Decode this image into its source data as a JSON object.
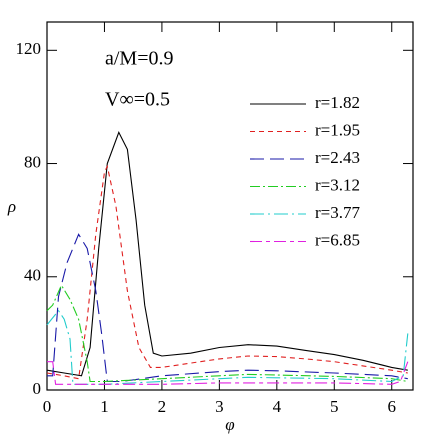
{
  "chart_data": {
    "type": "line",
    "annotations": [
      "a/M=0.9",
      "V∞=0.5"
    ],
    "x_label": "φ",
    "y_label": "ρ",
    "xlim": [
      0,
      6.37
    ],
    "ylim": [
      0,
      130
    ],
    "xticks": [
      0,
      1,
      2,
      3,
      4,
      5,
      6
    ],
    "yticks": [
      0,
      40,
      80,
      120
    ],
    "series": [
      {
        "name": "r=1.82",
        "color": "#000000",
        "dash": "",
        "x": [
          0,
          0.3,
          0.6,
          0.75,
          0.9,
          1.05,
          1.25,
          1.4,
          1.55,
          1.7,
          1.85,
          2.0,
          2.5,
          3.0,
          3.5,
          4.0,
          4.5,
          5.0,
          5.5,
          6.0,
          6.28
        ],
        "values": [
          7,
          6,
          5,
          15,
          50,
          80,
          91,
          85,
          60,
          30,
          13,
          12,
          13,
          15,
          16,
          15.5,
          14,
          12.5,
          10.5,
          8,
          7
        ]
      },
      {
        "name": "r=1.95",
        "color": "#e02020",
        "dash": "5,4",
        "x": [
          0,
          0.3,
          0.55,
          0.7,
          0.85,
          1.0,
          1.05,
          1.2,
          1.4,
          1.6,
          1.8,
          2.0,
          2.5,
          3.0,
          3.5,
          4.0,
          4.5,
          5.0,
          5.5,
          6.0,
          6.28
        ],
        "values": [
          6,
          5,
          4,
          25,
          55,
          77,
          79,
          65,
          35,
          15,
          8,
          8,
          9.5,
          11,
          12,
          11.8,
          11,
          10,
          8.5,
          7,
          6
        ]
      },
      {
        "name": "r=2.43",
        "color": "#1a1aa8",
        "dash": "14,6",
        "x": [
          0,
          0.1,
          0.2,
          0.35,
          0.55,
          0.7,
          0.85,
          0.95,
          1.05,
          1.3,
          2,
          3,
          3.5,
          4,
          5,
          6,
          6.28
        ],
        "values": [
          5,
          5,
          33,
          45,
          55,
          50,
          35,
          20,
          3,
          3,
          5,
          6.5,
          7,
          6.8,
          6,
          5,
          4
        ]
      },
      {
        "name": "r=3.12",
        "color": "#22cc22",
        "dash": "10,3,2,3",
        "x": [
          0,
          0.1,
          0.25,
          0.4,
          0.55,
          0.7,
          0.75,
          1,
          2,
          3,
          3.5,
          4,
          5,
          6,
          6.28
        ],
        "values": [
          28,
          30,
          37,
          32,
          25,
          10,
          3,
          3,
          4,
          5,
          5.5,
          5.3,
          4.8,
          4,
          3
        ]
      },
      {
        "name": "r=3.77",
        "color": "#22cccc",
        "dash": "14,4,2,4",
        "x": [
          0,
          0.2,
          0.3,
          0.4,
          0.45,
          1,
          2,
          3,
          3.5,
          4,
          5,
          6,
          6.2,
          6.28
        ],
        "values": [
          23,
          28,
          25,
          18,
          2,
          2,
          3,
          4,
          4.5,
          4.3,
          4,
          3,
          5,
          20
        ]
      },
      {
        "name": "r=6.85",
        "color": "#e020e0",
        "dash": "12,4,4,4",
        "x": [
          0,
          0.1,
          0.15,
          1,
          2,
          3,
          4,
          5,
          6,
          6.15,
          6.28
        ],
        "values": [
          10,
          10,
          2,
          2,
          2,
          2.5,
          2.5,
          2.5,
          2,
          3,
          10
        ]
      }
    ]
  }
}
